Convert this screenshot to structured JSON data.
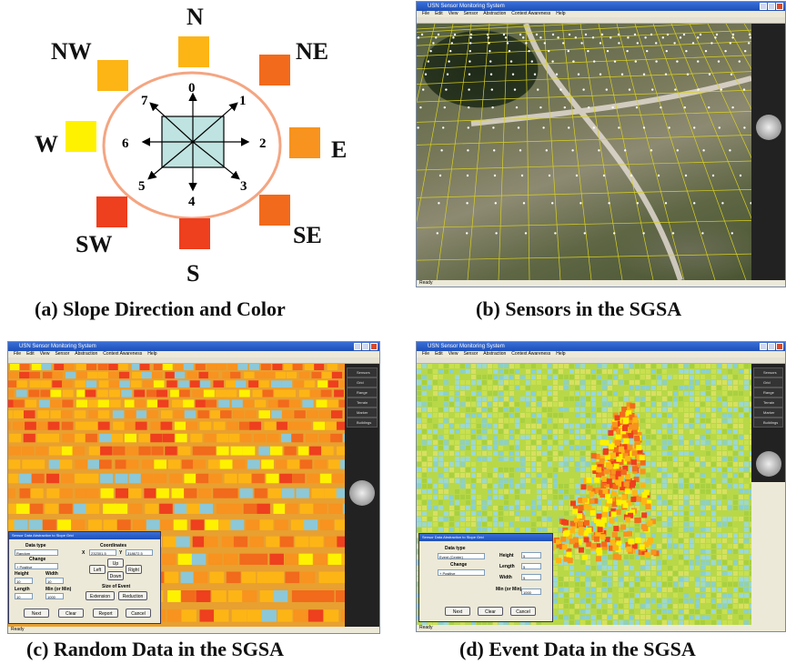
{
  "panel_a": {
    "caption": "(a) Slope Direction and Color",
    "directions": [
      {
        "label": "N",
        "color": "#FDB515"
      },
      {
        "label": "NE",
        "color": "#F26A1B"
      },
      {
        "label": "E",
        "color": "#F7931E"
      },
      {
        "label": "SE",
        "color": "#F26A1B"
      },
      {
        "label": "S",
        "color": "#EE3F1E"
      },
      {
        "label": "SW",
        "color": "#EE3F1E"
      },
      {
        "label": "W",
        "color": "#FFF200"
      },
      {
        "label": "NW",
        "color": "#FDB515"
      }
    ],
    "numbers": [
      "0",
      "1",
      "2",
      "3",
      "4",
      "5",
      "6",
      "7"
    ],
    "ring_color": "#F4A582",
    "center_fill": "#BFE3E0"
  },
  "panel_b": {
    "caption": "(b) Sensors in the SGSA",
    "title": "USN Sensor Monitoring System",
    "status": "Ready"
  },
  "panel_c": {
    "caption": "(c) Random Data in the SGSA",
    "title": "USN Sensor Monitoring System",
    "status": "Ready",
    "dialog": {
      "title": "Sensor Data Abstraction to Slope Grid",
      "data_type_label": "Data type",
      "data_type_value": "Random",
      "change_label": "Change",
      "change_value": "+ Positive",
      "height_label": "Height",
      "height_value": "10",
      "width_label": "Width",
      "width_value": "10",
      "length_label": "Length",
      "length_value": "10",
      "min_label": "Min (or Min)",
      "min_value": "1000",
      "coords_label": "Coordinates",
      "x_label": "X",
      "x_value": "232301.5",
      "y_label": "Y",
      "y_value": "318672.5",
      "up": "Up",
      "left": "Left",
      "right": "Right",
      "down": "Down",
      "size_label": "Size of Event",
      "extension": "Extension",
      "reduction": "Reduction",
      "next": "Next",
      "clear": "Clear",
      "report": "Report",
      "cancel": "Cancel"
    }
  },
  "panel_d": {
    "caption": "(d) Event Data in the SGSA",
    "title": "USN Sensor Monitoring System",
    "status": "Ready",
    "dialog": {
      "title": "Sensor Data Abstraction to Slope Grid",
      "data_type_label": "Data type",
      "data_type_value": "Event (Center)",
      "change_label": "Change",
      "change_value": "+ Positive",
      "height_label": "Height",
      "height_value": "5",
      "length_label": "Length",
      "length_value": "5",
      "width_label": "Width",
      "width_value": "5",
      "min_label": "Min (or Min)",
      "min_value": "1000",
      "next": "Next",
      "clear": "Clear",
      "cancel": "Cancel"
    }
  },
  "menu": [
    "File",
    "Edit",
    "View",
    "Sensor",
    "Abstraction",
    "Context Awareness",
    "Help"
  ],
  "side_items": [
    "Sensors",
    "Grid",
    "Range",
    "Terrain",
    "Marker Image",
    "Buildings"
  ]
}
